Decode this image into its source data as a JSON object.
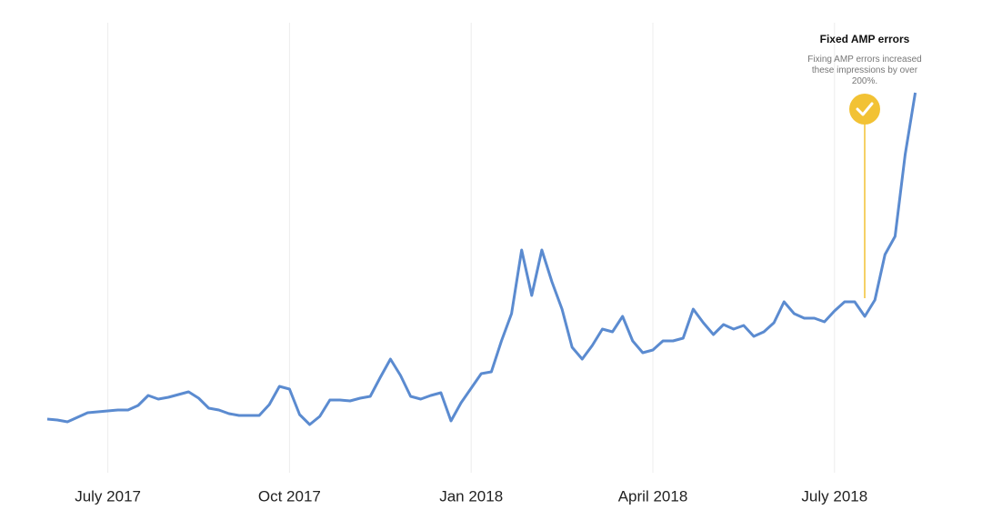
{
  "chart_data": {
    "type": "line",
    "categories": [
      null,
      null,
      null,
      null,
      null,
      null,
      "July 2017",
      null,
      null,
      null,
      null,
      null,
      null,
      null,
      null,
      null,
      null,
      null,
      null,
      null,
      null,
      null,
      null,
      null,
      "Oct 2017",
      null,
      null,
      null,
      null,
      null,
      null,
      null,
      null,
      null,
      null,
      null,
      null,
      null,
      null,
      null,
      null,
      null,
      "Jan 2018",
      null,
      null,
      null,
      null,
      null,
      null,
      null,
      null,
      null,
      null,
      null,
      null,
      null,
      null,
      null,
      null,
      null,
      "April 2018",
      null,
      null,
      null,
      null,
      null,
      null,
      null,
      null,
      null,
      null,
      null,
      null,
      null,
      null,
      null,
      null,
      null,
      "July 2018",
      null,
      null,
      null,
      null,
      null,
      null,
      null,
      null
    ],
    "series": [
      {
        "color": "#5b8bd0",
        "values": [
          7.25,
          7,
          6.5,
          7.75,
          9,
          9.25,
          9.5,
          9.75,
          9.75,
          11,
          13.75,
          12.75,
          13.25,
          14,
          14.75,
          13,
          10.25,
          9.75,
          8.75,
          8.25,
          8.25,
          8.25,
          11.25,
          16.25,
          15.5,
          8.5,
          5.75,
          8,
          12.5,
          12.5,
          12.25,
          13,
          13.5,
          18.75,
          23.75,
          19.25,
          13.5,
          12.75,
          13.75,
          14.5,
          6.75,
          11.75,
          15.75,
          19.75,
          20.25,
          28.75,
          36.25,
          53.75,
          41.25,
          53.75,
          45,
          37.5,
          27,
          23.75,
          27.5,
          32,
          31.25,
          35.5,
          28.75,
          25.5,
          26.25,
          28.75,
          28.75,
          29.5,
          37.5,
          33.75,
          30.5,
          33.25,
          32,
          33,
          30,
          31.25,
          33.75,
          39.5,
          36.25,
          35,
          35,
          34,
          37,
          39.5,
          39.5,
          35.5,
          40,
          52.5,
          57.5,
          80,
          97
        ]
      }
    ],
    "ylim": [
      0,
      100
    ],
    "grid": true,
    "annotation": {
      "title": "Fixed AMP errors",
      "text": "Fixing AMP errors increased these impressions by over 200%.",
      "color": "#f2c234"
    }
  }
}
